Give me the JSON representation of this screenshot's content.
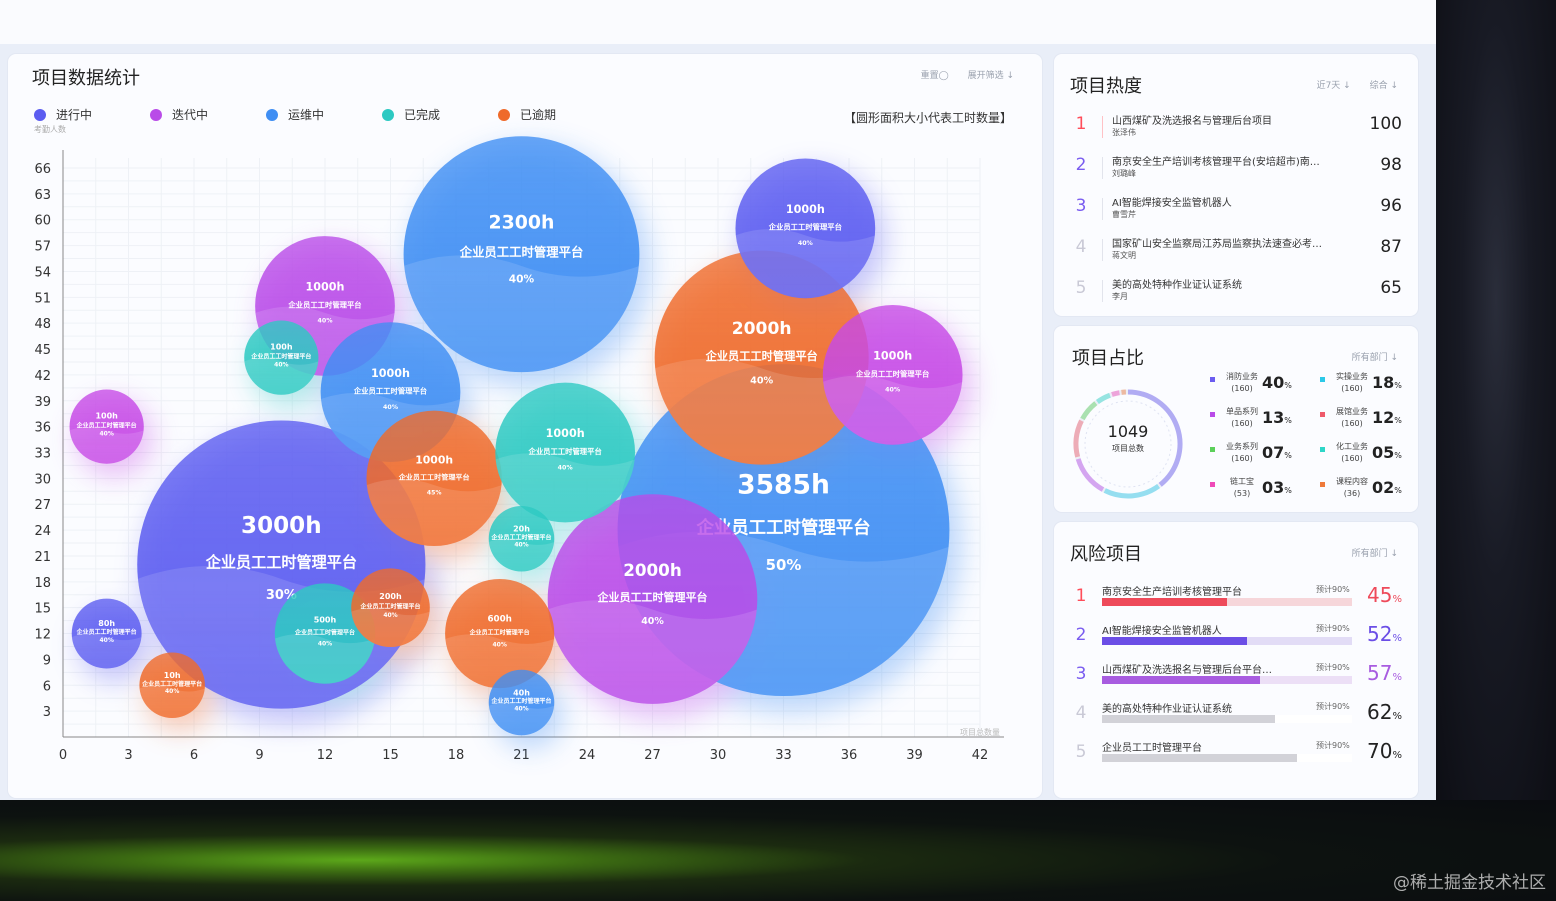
{
  "watermark": "@稀土掘金技术社区",
  "chart_panel": {
    "title": "项目数据统计",
    "tools": [
      "重置◯",
      "展开筛选 ↓"
    ],
    "legend_note": "考勤人数",
    "size_note": "【圆形面积大小代表工时数量】",
    "axis_corner_label": "项目总数量"
  },
  "chart_data": {
    "type": "scatter",
    "title": "项目数据统计",
    "xlabel": "",
    "ylabel": "",
    "xlim": [
      0,
      42
    ],
    "ylim": [
      0,
      66
    ],
    "x_ticks": [
      0,
      3,
      6,
      9,
      12,
      15,
      18,
      21,
      24,
      27,
      30,
      33,
      36,
      39,
      42
    ],
    "y_ticks": [
      3,
      6,
      9,
      12,
      15,
      18,
      21,
      24,
      27,
      30,
      33,
      36,
      39,
      42,
      45,
      48,
      51,
      54,
      57,
      60,
      63,
      66
    ],
    "grid": true,
    "legend": {
      "position": "top-left",
      "items": [
        {
          "name": "进行中",
          "color": "#5b5cf0"
        },
        {
          "name": "迭代中",
          "color": "#b94be8"
        },
        {
          "name": "运维中",
          "color": "#3f8ef3"
        },
        {
          "name": "已完成",
          "color": "#2cc9c2"
        },
        {
          "name": "已逾期",
          "color": "#ef6a2a"
        }
      ]
    },
    "bubbles": [
      {
        "x": 33,
        "y": 24,
        "r": 7.6,
        "hours": "3585h",
        "name": "企业员工工时管理平台",
        "pct": "50%",
        "color": "#3f8ef3"
      },
      {
        "x": 10,
        "y": 20,
        "r": 6.6,
        "hours": "3000h",
        "name": "企业员工工时管理平台",
        "pct": "30%",
        "color": "#5b5cf0"
      },
      {
        "x": 21,
        "y": 56,
        "r": 5.4,
        "hours": "2300h",
        "name": "企业员工工时管理平台",
        "pct": "40%",
        "color": "#3f8ef3"
      },
      {
        "x": 27,
        "y": 16,
        "r": 4.8,
        "hours": "2000h",
        "name": "企业员工工时管理平台",
        "pct": "40%",
        "color": "#b94be8"
      },
      {
        "x": 32,
        "y": 44,
        "r": 4.9,
        "hours": "2000h",
        "name": "企业员工工时管理平台",
        "pct": "40%",
        "color": "#ef6a2a"
      },
      {
        "x": 12,
        "y": 50,
        "r": 3.2,
        "hours": "1000h",
        "name": "企业员工工时管理平台",
        "pct": "40%",
        "color": "#b94be8"
      },
      {
        "x": 15,
        "y": 40,
        "r": 3.2,
        "hours": "1000h",
        "name": "企业员工工时管理平台",
        "pct": "40%",
        "color": "#3f8ef3"
      },
      {
        "x": 17,
        "y": 30,
        "r": 3.1,
        "hours": "1000h",
        "name": "企业员工工时管理平台",
        "pct": "45%",
        "color": "#ef6a2a"
      },
      {
        "x": 23,
        "y": 33,
        "r": 3.2,
        "hours": "1000h",
        "name": "企业员工工时管理平台",
        "pct": "40%",
        "color": "#2cc9c2"
      },
      {
        "x": 34,
        "y": 59,
        "r": 3.2,
        "hours": "1000h",
        "name": "企业员工工时管理平台",
        "pct": "40%",
        "color": "#5b5cf0"
      },
      {
        "x": 38,
        "y": 42,
        "r": 3.2,
        "hours": "1000h",
        "name": "企业员工工时管理平台",
        "pct": "40%",
        "color": "#c64ae6"
      },
      {
        "x": 12,
        "y": 12,
        "r": 2.3,
        "hours": "500h",
        "name": "企业员工工时管理平台",
        "pct": "40%",
        "color": "#2cc9c2"
      },
      {
        "x": 20,
        "y": 12,
        "r": 2.5,
        "hours": "600h",
        "name": "企业员工工时管理平台",
        "pct": "40%",
        "color": "#ef6a2a"
      },
      {
        "x": 15,
        "y": 15,
        "r": 1.8,
        "hours": "200h",
        "name": "企业员工工时管理平台",
        "pct": "40%",
        "color": "#ef6a2a"
      },
      {
        "x": 10,
        "y": 44,
        "r": 1.7,
        "hours": "100h",
        "name": "企业员工工时管理平台",
        "pct": "40%",
        "color": "#2cc9c2"
      },
      {
        "x": 2,
        "y": 36,
        "r": 1.7,
        "hours": "100h",
        "name": "企业员工工时管理平台",
        "pct": "40%",
        "color": "#c64ae6"
      },
      {
        "x": 2,
        "y": 12,
        "r": 1.6,
        "hours": "80h",
        "name": "企业员工工时管理平台",
        "pct": "40%",
        "color": "#5b5cf0"
      },
      {
        "x": 5,
        "y": 6,
        "r": 1.5,
        "hours": "10h",
        "name": "企业员工工时管理平台",
        "pct": "40%",
        "color": "#ef6a2a"
      },
      {
        "x": 21,
        "y": 23,
        "r": 1.5,
        "hours": "20h",
        "name": "企业员工工时管理平台",
        "pct": "40%",
        "color": "#2cc9c2"
      },
      {
        "x": 21,
        "y": 4,
        "r": 1.5,
        "hours": "40h",
        "name": "企业员工工时管理平台",
        "pct": "40%",
        "color": "#3f8ef3"
      }
    ]
  },
  "hot_panel": {
    "title": "项目热度",
    "tools": [
      "近7天 ↓",
      "综合 ↓"
    ],
    "items": [
      {
        "rank": "1",
        "name": "山西煤矿及洗选报名与管理后台项目",
        "person": "张泽伟",
        "value": "100",
        "color": "#ff4d5a"
      },
      {
        "rank": "2",
        "name": "南京安全生产培训考核管理平台(安培超市)南…",
        "person": "刘璐峰",
        "value": "98",
        "color": "#7a5cf0"
      },
      {
        "rank": "3",
        "name": "AI智能焊接安全监管机器人",
        "person": "曹雪芹",
        "value": "96",
        "color": "#7a5cf0"
      },
      {
        "rank": "4",
        "name": "国家矿山安全监察局江苏局监察执法速查必考…",
        "person": "蒋文明",
        "value": "87",
        "color": "#c9c9d6"
      },
      {
        "rank": "5",
        "name": "美的高处特种作业证认证系统",
        "person": "李月",
        "value": "65",
        "color": "#c9c9d6"
      }
    ]
  },
  "share_panel": {
    "title": "项目占比",
    "tools": [
      "所有部门 ↓"
    ],
    "total": "1049",
    "total_label": "项目总数",
    "items": [
      {
        "name": "消防业务",
        "count": "(160)",
        "pct": "40",
        "unit": "%",
        "color": "#6b5cf0"
      },
      {
        "name": "实操业务",
        "count": "(160)",
        "pct": "18",
        "unit": "%",
        "color": "#2cc9e8"
      },
      {
        "name": "单品系列",
        "count": "(160)",
        "pct": "13",
        "unit": "%",
        "color": "#b94be8"
      },
      {
        "name": "展馆业务",
        "count": "(160)",
        "pct": "12",
        "unit": "%",
        "color": "#ef5a6a"
      },
      {
        "name": "业务系列",
        "count": "(160)",
        "pct": "07",
        "unit": "%",
        "color": "#5cd05a"
      },
      {
        "name": "化工业务",
        "count": "(160)",
        "pct": "05",
        "unit": "%",
        "color": "#2ed6c8"
      },
      {
        "name": "链工宝",
        "count": "(53)",
        "pct": "03",
        "unit": "%",
        "color": "#ef4ab8"
      },
      {
        "name": "课程内容",
        "count": "(36)",
        "pct": "02",
        "unit": "%",
        "color": "#ef7a3a"
      }
    ]
  },
  "risk_panel": {
    "title": "风险项目",
    "tools": [
      "所有部门 ↓"
    ],
    "items": [
      {
        "rank": "1",
        "name": "南京安全生产培训考核管理平台",
        "target": "预计90%",
        "pct": "45",
        "unit": "%",
        "progress": 0.5,
        "color": "#ee4a5a",
        "track": "#f6d6da",
        "rank_color": "#ff4d5a"
      },
      {
        "rank": "2",
        "name": "AI智能焊接安全监管机器人",
        "target": "预计90%",
        "pct": "52",
        "unit": "%",
        "progress": 0.58,
        "color": "#6b4ee6",
        "track": "#e2dcf6",
        "rank_color": "#7a5cf0"
      },
      {
        "rank": "3",
        "name": "山西煤矿及洗选报名与管理后台平台…",
        "target": "预计90%",
        "pct": "57",
        "unit": "%",
        "progress": 0.63,
        "color": "#a85ce0",
        "track": "#ecdff6",
        "rank_color": "#7a5cf0"
      },
      {
        "rank": "4",
        "name": "美的高处特种作业证认证系统",
        "target": "预计90%",
        "pct": "62",
        "unit": "%",
        "progress": 0.69,
        "color": "#d2d2d8",
        "track": "#ffffff",
        "rank_color": "#c9c9d6"
      },
      {
        "rank": "5",
        "name": "企业员工工时管理平台",
        "target": "预计90%",
        "pct": "70",
        "unit": "%",
        "progress": 0.78,
        "color": "#d2d2d8",
        "track": "#ffffff",
        "rank_color": "#c9c9d6"
      }
    ]
  }
}
